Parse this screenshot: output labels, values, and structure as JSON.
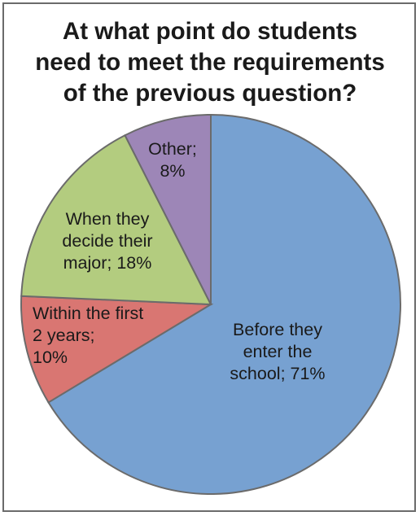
{
  "chart_data": {
    "type": "pie",
    "title_lines": [
      "At what point do students",
      "need to meet the requirements",
      "of the previous question?"
    ],
    "slices": [
      {
        "name": "Before they enter the school",
        "value": 71,
        "color": "#77A1D1",
        "label_lines": [
          "Before they",
          "enter the",
          "school; 71%"
        ]
      },
      {
        "name": "Within the first 2 years",
        "value": 10,
        "color": "#D97672",
        "label_lines": [
          "Within the first",
          "2 years;",
          "10%"
        ]
      },
      {
        "name": "When they decide their major",
        "value": 18,
        "color": "#B3CC7F",
        "label_lines": [
          "When they",
          "decide their",
          "major; 18%"
        ]
      },
      {
        "name": "Other",
        "value": 8,
        "color": "#9D86B7",
        "label_lines": [
          "Other;",
          "8%"
        ]
      }
    ],
    "start": "12 o'clock",
    "direction": "clockwise",
    "legend": "none",
    "border_color": "#6b6b6b"
  }
}
